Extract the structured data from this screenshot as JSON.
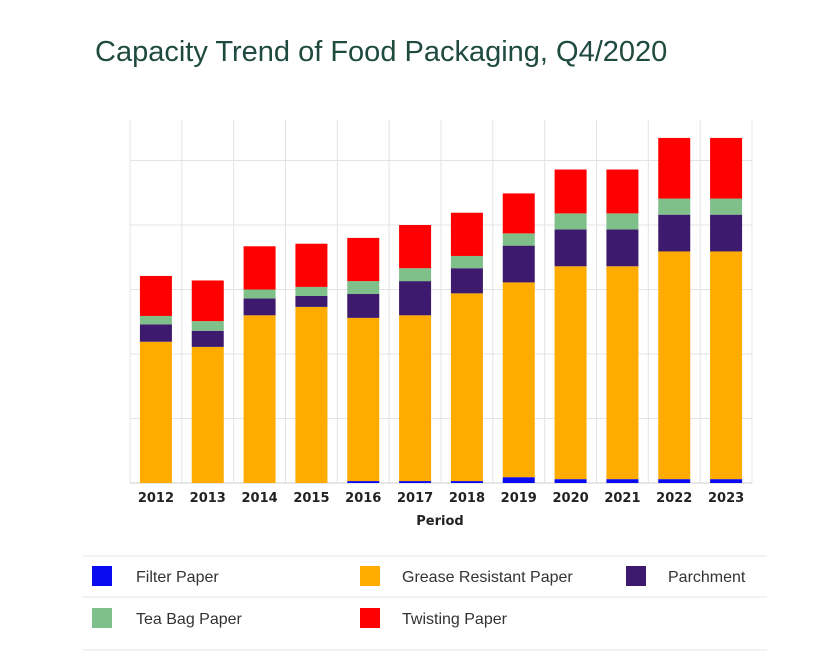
{
  "chart_data": {
    "type": "bar",
    "stacked": true,
    "title": "Capacity Trend of Food Packaging, Q4/2020",
    "xlabel": "Period",
    "ylabel": "",
    "ylim": [
      0,
      5.6
    ],
    "grid": true,
    "legend": "bottom",
    "categories": [
      "2012",
      "2013",
      "2014",
      "2015",
      "2016",
      "2017",
      "2018",
      "2019",
      "2020",
      "2021",
      "2022",
      "2023"
    ],
    "series": [
      {
        "name": "Filter Paper",
        "color": "#0a0af0",
        "values": [
          0.0,
          0.0,
          0.0,
          0.0,
          0.03,
          0.03,
          0.03,
          0.09,
          0.06,
          0.06,
          0.06,
          0.06
        ]
      },
      {
        "name": "Grease Resistant Paper",
        "color": "#ffab00",
        "values": [
          2.19,
          2.11,
          2.6,
          2.73,
          2.53,
          2.57,
          2.91,
          3.02,
          3.3,
          3.3,
          3.53,
          3.53
        ]
      },
      {
        "name": "Parchment",
        "color": "#3d1a6e",
        "values": [
          0.27,
          0.25,
          0.26,
          0.17,
          0.37,
          0.53,
          0.39,
          0.57,
          0.57,
          0.57,
          0.57,
          0.57
        ]
      },
      {
        "name": "Tea Bag Paper",
        "color": "#7fbf8a",
        "values": [
          0.13,
          0.15,
          0.14,
          0.14,
          0.2,
          0.2,
          0.19,
          0.19,
          0.25,
          0.25,
          0.25,
          0.25
        ]
      },
      {
        "name": "Twisting Paper",
        "color": "#ff0000",
        "values": [
          0.62,
          0.63,
          0.67,
          0.67,
          0.67,
          0.67,
          0.67,
          0.62,
          0.68,
          0.68,
          0.94,
          0.94
        ]
      }
    ]
  }
}
